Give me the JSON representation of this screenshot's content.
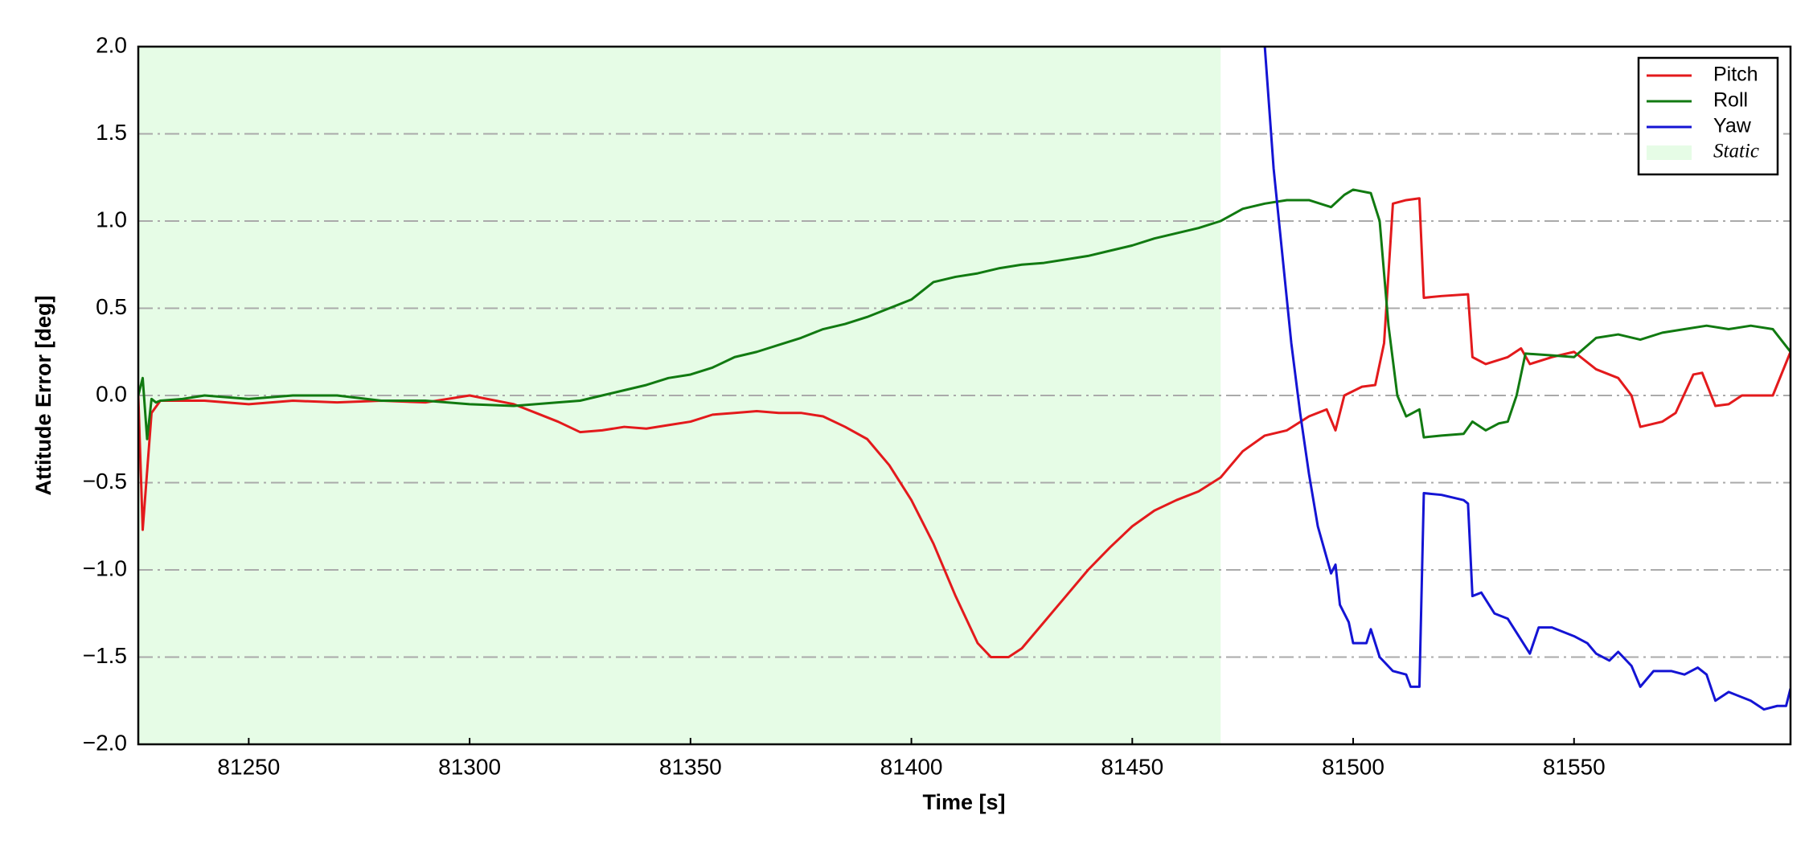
{
  "chart_data": {
    "type": "line",
    "xlabel": "Time [s]",
    "ylabel": "Attitude Error [deg]",
    "xlim": [
      81225,
      81599
    ],
    "ylim": [
      -2.0,
      2.0
    ],
    "xticks": [
      81250,
      81300,
      81350,
      81400,
      81450,
      81500,
      81550
    ],
    "yticks": [
      {
        "value": -2.0,
        "label": "−2.0"
      },
      {
        "value": -1.5,
        "label": "−1.5"
      },
      {
        "value": -1.0,
        "label": "−1.0"
      },
      {
        "value": -0.5,
        "label": "−0.5"
      },
      {
        "value": 0.0,
        "label": "0.0"
      },
      {
        "value": 0.5,
        "label": "0.5"
      },
      {
        "value": 1.0,
        "label": "1.0"
      },
      {
        "value": 1.5,
        "label": "1.5"
      },
      {
        "value": 2.0,
        "label": "2.0"
      }
    ],
    "grid": true,
    "legend": "upper right",
    "shade": {
      "label": "Static",
      "xrange": [
        81225,
        81470
      ],
      "color": "#e6fce6"
    },
    "series": [
      {
        "name": "Pitch",
        "color": "#e31a1c",
        "x": [
          81225,
          81226,
          81228,
          81230,
          81240,
          81250,
          81260,
          81270,
          81280,
          81290,
          81300,
          81310,
          81315,
          81320,
          81325,
          81330,
          81335,
          81340,
          81345,
          81350,
          81355,
          81360,
          81365,
          81370,
          81375,
          81380,
          81385,
          81390,
          81395,
          81400,
          81405,
          81410,
          81415,
          81418,
          81422,
          81425,
          81430,
          81435,
          81440,
          81445,
          81450,
          81455,
          81460,
          81465,
          81470,
          81475,
          81480,
          81485,
          81490,
          81494,
          81496,
          81498,
          81502,
          81505,
          81507,
          81509,
          81512,
          81515,
          81516,
          81520,
          81526,
          81527,
          81530,
          81535,
          81538,
          81540,
          81545,
          81550,
          81555,
          81560,
          81563,
          81565,
          81570,
          81573,
          81577,
          81579,
          81582,
          81585,
          81588,
          81592,
          81595,
          81599
        ],
        "values": [
          0.0,
          -0.77,
          -0.1,
          -0.03,
          -0.03,
          -0.05,
          -0.03,
          -0.04,
          -0.03,
          -0.04,
          0.0,
          -0.05,
          -0.1,
          -0.15,
          -0.21,
          -0.2,
          -0.18,
          -0.19,
          -0.17,
          -0.15,
          -0.11,
          -0.1,
          -0.09,
          -0.1,
          -0.1,
          -0.12,
          -0.18,
          -0.25,
          -0.4,
          -0.6,
          -0.85,
          -1.15,
          -1.42,
          -1.5,
          -1.5,
          -1.45,
          -1.3,
          -1.15,
          -1.0,
          -0.87,
          -0.75,
          -0.66,
          -0.6,
          -0.55,
          -0.47,
          -0.32,
          -0.23,
          -0.2,
          -0.12,
          -0.08,
          -0.2,
          0.0,
          0.05,
          0.06,
          0.3,
          1.1,
          1.12,
          1.13,
          0.56,
          0.57,
          0.58,
          0.22,
          0.18,
          0.22,
          0.27,
          0.18,
          0.22,
          0.25,
          0.15,
          0.1,
          0.0,
          -0.18,
          -0.15,
          -0.1,
          0.12,
          0.13,
          -0.06,
          -0.05,
          0.0,
          0.0,
          0.0,
          0.25
        ]
      },
      {
        "name": "Roll",
        "color": "#117a11",
        "x": [
          81225,
          81226,
          81227,
          81228,
          81229,
          81230,
          81235,
          81240,
          81250,
          81260,
          81270,
          81280,
          81290,
          81300,
          81310,
          81320,
          81325,
          81330,
          81335,
          81340,
          81345,
          81350,
          81355,
          81360,
          81365,
          81370,
          81375,
          81380,
          81385,
          81390,
          81395,
          81400,
          81405,
          81410,
          81415,
          81420,
          81425,
          81430,
          81435,
          81440,
          81445,
          81450,
          81455,
          81460,
          81465,
          81470,
          81475,
          81480,
          81485,
          81490,
          81495,
          81498,
          81500,
          81504,
          81506,
          81508,
          81510,
          81512,
          81515,
          81516,
          81520,
          81525,
          81527,
          81530,
          81533,
          81535,
          81537,
          81539,
          81545,
          81550,
          81555,
          81560,
          81565,
          81570,
          81575,
          81580,
          81585,
          81590,
          81595,
          81599
        ],
        "values": [
          0.0,
          0.1,
          -0.25,
          -0.02,
          -0.04,
          -0.03,
          -0.02,
          0.0,
          -0.02,
          0.0,
          0.0,
          -0.03,
          -0.03,
          -0.05,
          -0.06,
          -0.04,
          -0.03,
          0.0,
          0.03,
          0.06,
          0.1,
          0.12,
          0.16,
          0.22,
          0.25,
          0.29,
          0.33,
          0.38,
          0.41,
          0.45,
          0.5,
          0.55,
          0.65,
          0.68,
          0.7,
          0.73,
          0.75,
          0.76,
          0.78,
          0.8,
          0.83,
          0.86,
          0.9,
          0.93,
          0.96,
          1.0,
          1.07,
          1.1,
          1.12,
          1.12,
          1.08,
          1.15,
          1.18,
          1.16,
          1.0,
          0.4,
          0.0,
          -0.12,
          -0.08,
          -0.24,
          -0.23,
          -0.22,
          -0.15,
          -0.2,
          -0.16,
          -0.15,
          0.0,
          0.24,
          0.23,
          0.22,
          0.33,
          0.35,
          0.32,
          0.36,
          0.38,
          0.4,
          0.38,
          0.4,
          0.38,
          0.25
        ]
      },
      {
        "name": "Yaw",
        "color": "#1414d4",
        "x": [
          81480,
          81482,
          81484,
          81486,
          81488,
          81490,
          81492,
          81495,
          81496,
          81497,
          81499,
          81500,
          81503,
          81504,
          81506,
          81509,
          81512,
          81513,
          81515,
          81516,
          81520,
          81525,
          81526,
          81527,
          81529,
          81532,
          81535,
          81538,
          81540,
          81542,
          81545,
          81550,
          81553,
          81555,
          81558,
          81560,
          81563,
          81565,
          81568,
          81572,
          81575,
          81578,
          81580,
          81582,
          81585,
          81590,
          81593,
          81596,
          81598,
          81599
        ],
        "values": [
          2.0,
          1.3,
          0.8,
          0.3,
          -0.1,
          -0.45,
          -0.75,
          -1.02,
          -0.97,
          -1.2,
          -1.3,
          -1.42,
          -1.42,
          -1.34,
          -1.5,
          -1.58,
          -1.6,
          -1.67,
          -1.67,
          -0.56,
          -0.57,
          -0.6,
          -0.62,
          -1.15,
          -1.13,
          -1.25,
          -1.28,
          -1.4,
          -1.48,
          -1.33,
          -1.33,
          -1.38,
          -1.42,
          -1.48,
          -1.52,
          -1.47,
          -1.55,
          -1.67,
          -1.58,
          -1.58,
          -1.6,
          -1.56,
          -1.6,
          -1.75,
          -1.7,
          -1.75,
          -1.8,
          -1.78,
          -1.78,
          -1.68
        ]
      }
    ]
  }
}
